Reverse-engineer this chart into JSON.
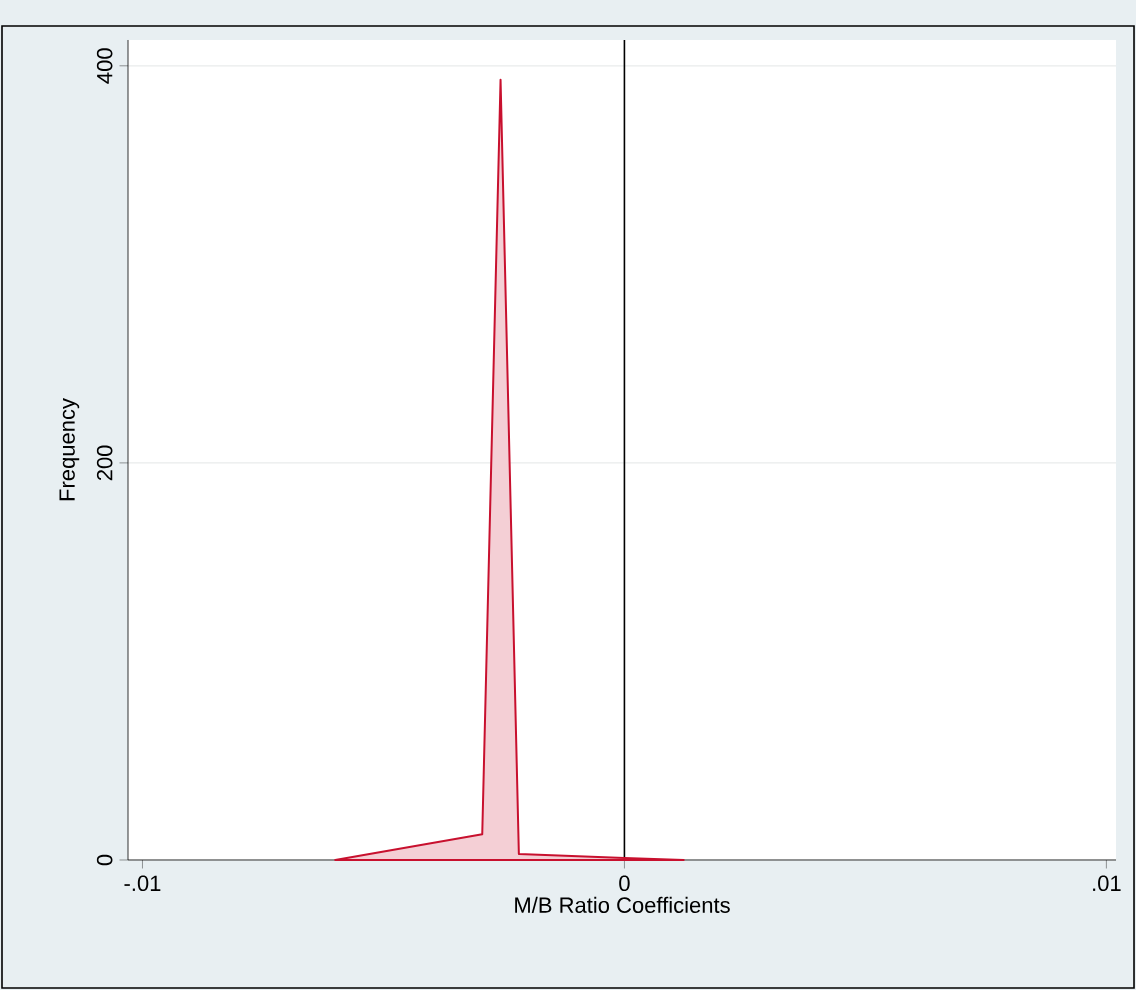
{
  "chart_data": {
    "type": "area",
    "xlabel": "M/B Ratio Coefficients",
    "ylabel": "Frequency",
    "x": [
      -0.006,
      -0.00295,
      -0.00257,
      -0.00219,
      0,
      0.00123
    ],
    "values": [
      0,
      13,
      393,
      3,
      1,
      0
    ],
    "color": "#c8102e",
    "xlim": [
      -0.0103,
      0.0102
    ],
    "ylim": [
      0,
      413
    ],
    "xticks": [
      {
        "value": -0.01,
        "label": "-.01"
      },
      0,
      {
        "value": 0.01,
        "label": ".01"
      }
    ],
    "yticks": [
      0,
      200,
      400
    ],
    "ref_lines": [
      {
        "axis": "x",
        "value": 0,
        "color": "#000000"
      }
    ],
    "grid": "y"
  }
}
